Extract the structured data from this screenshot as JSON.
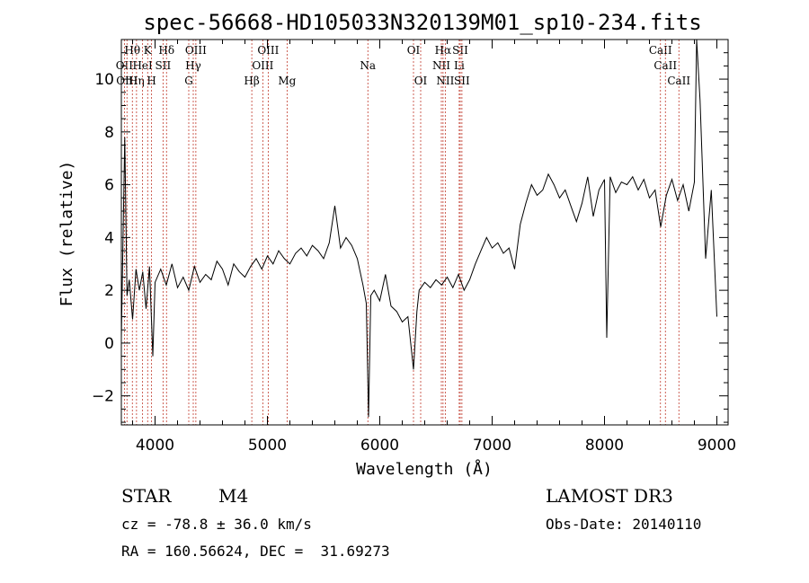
{
  "chart_data": {
    "type": "line",
    "title": "spec-56668-HD105033N320139M01_sp10-234.fits",
    "xlabel": "Wavelength (Å)",
    "ylabel": "Flux (relative)",
    "xlim": [
      3700,
      9100
    ],
    "ylim": [
      -3.1,
      11.5
    ],
    "xticks": [
      4000,
      5000,
      6000,
      7000,
      8000,
      9000
    ],
    "yticks": [
      -2,
      0,
      2,
      4,
      6,
      8,
      10
    ],
    "grid": false,
    "series": [
      {
        "x": [
          3700,
          3730,
          3750,
          3770,
          3800,
          3830,
          3860,
          3890,
          3920,
          3950,
          3980,
          4000,
          4050,
          4100,
          4150,
          4200,
          4250,
          4300,
          4350,
          4400,
          4450,
          4500,
          4550,
          4600,
          4650,
          4700,
          4750,
          4800,
          4850,
          4900,
          4950,
          5000,
          5050,
          5100,
          5150,
          5200,
          5250,
          5300,
          5350,
          5400,
          5450,
          5500,
          5550,
          5600,
          5650,
          5700,
          5750,
          5800,
          5850,
          5880,
          5900,
          5920,
          5950,
          6000,
          6050,
          6100,
          6150,
          6200,
          6250,
          6300,
          6330,
          6350,
          6400,
          6450,
          6500,
          6550,
          6600,
          6650,
          6700,
          6750,
          6800,
          6850,
          6900,
          6950,
          7000,
          7050,
          7100,
          7150,
          7200,
          7250,
          7300,
          7350,
          7400,
          7450,
          7500,
          7550,
          7600,
          7650,
          7700,
          7750,
          7800,
          7850,
          7900,
          7950,
          8000,
          8020,
          8050,
          8100,
          8150,
          8200,
          8250,
          8300,
          8350,
          8400,
          8450,
          8500,
          8550,
          8600,
          8650,
          8700,
          8750,
          8800,
          8820,
          8850,
          8900,
          8950,
          9000
        ],
        "y": [
          0.2,
          7.8,
          1.8,
          2.4,
          0.9,
          2.8,
          2.0,
          2.7,
          1.3,
          2.9,
          -0.5,
          2.3,
          2.8,
          2.2,
          3.0,
          2.1,
          2.5,
          2.0,
          2.9,
          2.3,
          2.6,
          2.4,
          3.1,
          2.8,
          2.2,
          3.0,
          2.7,
          2.5,
          2.9,
          3.2,
          2.8,
          3.3,
          3.0,
          3.5,
          3.2,
          3.0,
          3.4,
          3.6,
          3.3,
          3.7,
          3.5,
          3.2,
          3.8,
          5.2,
          3.6,
          4.0,
          3.7,
          3.2,
          2.2,
          1.5,
          -2.8,
          1.8,
          2.0,
          1.6,
          2.6,
          1.4,
          1.2,
          0.8,
          1.0,
          -1.0,
          1.2,
          2.0,
          2.3,
          2.1,
          2.4,
          2.2,
          2.5,
          2.1,
          2.6,
          2.0,
          2.4,
          3.0,
          3.5,
          4.0,
          3.6,
          3.8,
          3.4,
          3.6,
          2.8,
          4.5,
          5.3,
          6.0,
          5.6,
          5.8,
          6.4,
          6.0,
          5.5,
          5.8,
          5.2,
          4.6,
          5.3,
          6.3,
          4.8,
          5.8,
          6.2,
          0.2,
          6.3,
          5.7,
          6.1,
          6.0,
          6.3,
          5.8,
          6.2,
          5.5,
          5.8,
          4.4,
          5.6,
          6.2,
          5.4,
          6.0,
          5.0,
          6.1,
          11.5,
          9.2,
          3.2,
          5.8,
          1.0
        ]
      }
    ],
    "lines": [
      {
        "wl": 3727,
        "label": "OII",
        "row": 1
      },
      {
        "wl": 3750,
        "label": "OIII",
        "row": 2
      },
      {
        "wl": 3798,
        "label": "Hθ",
        "row": 0
      },
      {
        "wl": 3835,
        "label": "Hη",
        "row": 2
      },
      {
        "wl": 3889,
        "label": "HeI",
        "row": 1
      },
      {
        "wl": 3934,
        "label": "K",
        "row": 0
      },
      {
        "wl": 3969,
        "label": "H",
        "row": 2
      },
      {
        "wl": 4071,
        "label": "SII",
        "row": 1
      },
      {
        "wl": 4102,
        "label": "Hδ",
        "row": 0
      },
      {
        "wl": 4300,
        "label": "G",
        "row": 2
      },
      {
        "wl": 4340,
        "label": "Hγ",
        "row": 1
      },
      {
        "wl": 4363,
        "label": "OIII",
        "row": 0
      },
      {
        "wl": 4861,
        "label": "Hβ",
        "row": 2
      },
      {
        "wl": 4959,
        "label": "OIII",
        "row": 1
      },
      {
        "wl": 5007,
        "label": "OIII",
        "row": 0
      },
      {
        "wl": 5175,
        "label": "Mg",
        "row": 2
      },
      {
        "wl": 5894,
        "label": "Na",
        "row": 1
      },
      {
        "wl": 6300,
        "label": "OI",
        "row": 0
      },
      {
        "wl": 6364,
        "label": "OI",
        "row": 2
      },
      {
        "wl": 6548,
        "label": "NII",
        "row": 1
      },
      {
        "wl": 6563,
        "label": "Hα",
        "row": 0
      },
      {
        "wl": 6583,
        "label": "NII",
        "row": 2
      },
      {
        "wl": 6707,
        "label": "Li",
        "row": 1
      },
      {
        "wl": 6716,
        "label": "SII",
        "row": 0
      },
      {
        "wl": 6731,
        "label": "SII",
        "row": 2
      },
      {
        "wl": 8498,
        "label": "CaII",
        "row": 0
      },
      {
        "wl": 8542,
        "label": "CaII",
        "row": 1
      },
      {
        "wl": 8662,
        "label": "CaII",
        "row": 2
      }
    ]
  },
  "info": {
    "object_class": "STAR",
    "subclass": "M4",
    "survey": "LAMOST DR3",
    "cz": "cz = -78.8 ± 36.0 km/s",
    "obs_date": "Obs-Date: 20140110",
    "coords": "RA = 160.56624, DEC =  31.69273"
  }
}
